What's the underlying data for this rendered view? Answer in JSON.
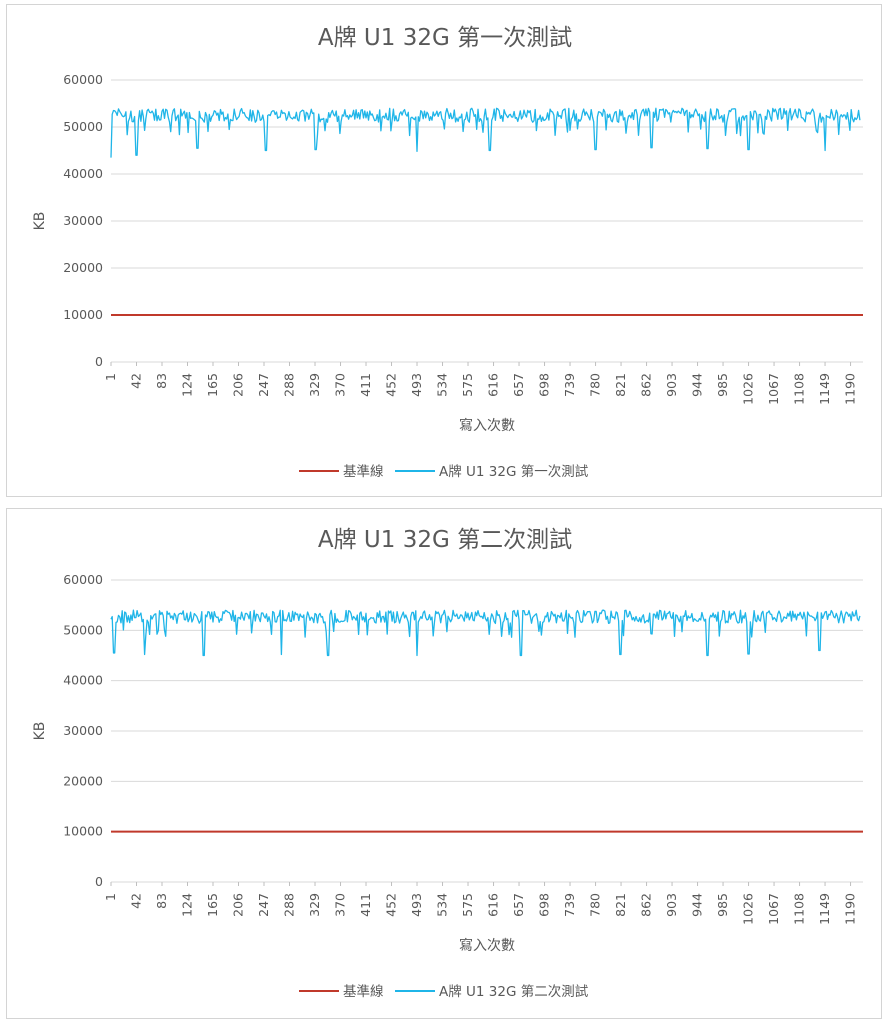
{
  "colors": {
    "baseline": "#C0392B",
    "series": "#1FB5E8",
    "grid": "#D9D9D9",
    "text": "#595959"
  },
  "chart_data": [
    {
      "type": "line",
      "title": "A牌 U1 32G 第一次測試",
      "xlabel": "寫入次數",
      "ylabel": "KB",
      "ylim": [
        0,
        60000
      ],
      "y_ticks": [
        "0",
        "10000",
        "20000",
        "30000",
        "40000",
        "50000",
        "60000"
      ],
      "x_ticks": [
        "1",
        "42",
        "83",
        "124",
        "165",
        "206",
        "247",
        "288",
        "329",
        "370",
        "411",
        "452",
        "493",
        "534",
        "575",
        "616",
        "657",
        "698",
        "739",
        "780",
        "821",
        "862",
        "903",
        "944",
        "985",
        "1026",
        "1067",
        "1108",
        "1149",
        "1190"
      ],
      "x_range": [
        1,
        1210
      ],
      "grid": true,
      "legend_position": "bottom",
      "series": [
        {
          "name": "基準線",
          "color": "#C0392B",
          "x": [
            1,
            1210
          ],
          "values": [
            10000,
            10000
          ]
        },
        {
          "name": "A牌 U1 32G 第一次測試",
          "color": "#1FB5E8",
          "approx_level": 52000,
          "fluctuation": [
            50000,
            54000
          ],
          "dips": [
            [
              1,
              43500
            ],
            [
              42,
              44000
            ],
            [
              140,
              45500
            ],
            [
              250,
              45000
            ],
            [
              330,
              45200
            ],
            [
              493,
              44800
            ],
            [
              610,
              45000
            ],
            [
              780,
              45200
            ],
            [
              870,
              45600
            ],
            [
              960,
              45400
            ],
            [
              1026,
              45200
            ],
            [
              1149,
              45000
            ]
          ]
        }
      ]
    },
    {
      "type": "line",
      "title": "A牌 U1 32G 第二次測試",
      "xlabel": "寫入次數",
      "ylabel": "KB",
      "ylim": [
        0,
        60000
      ],
      "y_ticks": [
        "0",
        "10000",
        "20000",
        "30000",
        "40000",
        "50000",
        "60000"
      ],
      "x_ticks": [
        "1",
        "42",
        "83",
        "124",
        "165",
        "206",
        "247",
        "288",
        "329",
        "370",
        "411",
        "452",
        "493",
        "534",
        "575",
        "616",
        "657",
        "698",
        "739",
        "780",
        "821",
        "862",
        "903",
        "944",
        "985",
        "1026",
        "1067",
        "1108",
        "1149",
        "1190"
      ],
      "x_range": [
        1,
        1210
      ],
      "grid": true,
      "legend_position": "bottom",
      "series": [
        {
          "name": "基準線",
          "color": "#C0392B",
          "x": [
            1,
            1210
          ],
          "values": [
            10000,
            10000
          ]
        },
        {
          "name": "A牌 U1 32G 第二次測試",
          "color": "#1FB5E8",
          "approx_level": 52000,
          "fluctuation": [
            50500,
            54000
          ],
          "dips": [
            [
              6,
              45500
            ],
            [
              55,
              45200
            ],
            [
              150,
              45000
            ],
            [
              275,
              45200
            ],
            [
              350,
              45000
            ],
            [
              493,
              45000
            ],
            [
              660,
              45000
            ],
            [
              820,
              45200
            ],
            [
              960,
              45000
            ],
            [
              1026,
              45300
            ],
            [
              1140,
              46000
            ]
          ]
        }
      ]
    }
  ]
}
